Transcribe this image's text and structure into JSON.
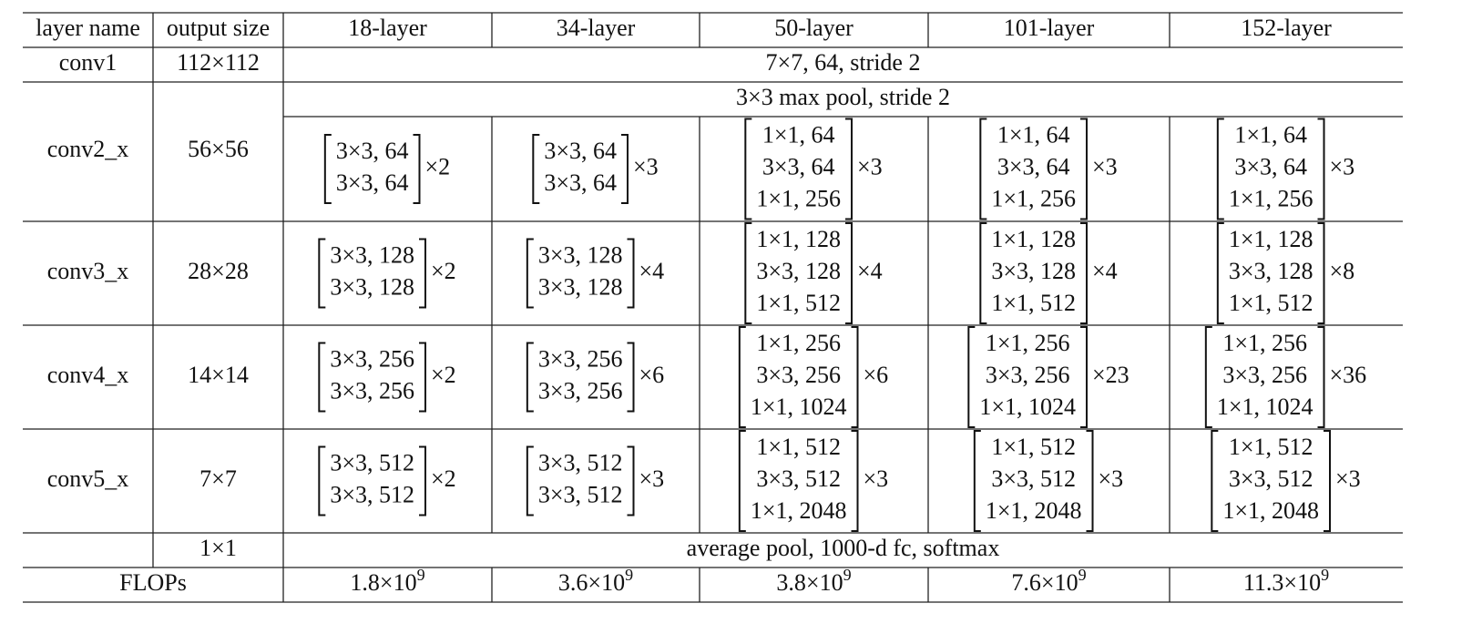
{
  "table": {
    "header": [
      "layer name",
      "output size",
      "18-layer",
      "34-layer",
      "50-layer",
      "101-layer",
      "152-layer"
    ],
    "conv1": {
      "name": "conv1",
      "output": "112×112",
      "spec": "7×7, 64, stride 2"
    },
    "pool": "3×3 max pool, stride 2",
    "stages": [
      {
        "name": "conv2_x",
        "output": "56×56",
        "blocks": [
          {
            "lines": [
              "3×3, 64",
              "3×3, 64"
            ],
            "repeat": "×2"
          },
          {
            "lines": [
              "3×3, 64",
              "3×3, 64"
            ],
            "repeat": "×3"
          },
          {
            "lines": [
              "1×1, 64",
              "3×3, 64",
              "1×1, 256"
            ],
            "repeat": "×3"
          },
          {
            "lines": [
              "1×1, 64",
              "3×3, 64",
              "1×1, 256"
            ],
            "repeat": "×3"
          },
          {
            "lines": [
              "1×1, 64",
              "3×3, 64",
              "1×1, 256"
            ],
            "repeat": "×3"
          }
        ]
      },
      {
        "name": "conv3_x",
        "output": "28×28",
        "blocks": [
          {
            "lines": [
              "3×3, 128",
              "3×3, 128"
            ],
            "repeat": "×2"
          },
          {
            "lines": [
              "3×3, 128",
              "3×3, 128"
            ],
            "repeat": "×4"
          },
          {
            "lines": [
              "1×1, 128",
              "3×3, 128",
              "1×1, 512"
            ],
            "repeat": "×4"
          },
          {
            "lines": [
              "1×1, 128",
              "3×3, 128",
              "1×1, 512"
            ],
            "repeat": "×4"
          },
          {
            "lines": [
              "1×1, 128",
              "3×3, 128",
              "1×1, 512"
            ],
            "repeat": "×8"
          }
        ]
      },
      {
        "name": "conv4_x",
        "output": "14×14",
        "blocks": [
          {
            "lines": [
              "3×3, 256",
              "3×3, 256"
            ],
            "repeat": "×2"
          },
          {
            "lines": [
              "3×3, 256",
              "3×3, 256"
            ],
            "repeat": "×6"
          },
          {
            "lines": [
              "1×1, 256",
              "3×3, 256",
              "1×1, 1024"
            ],
            "repeat": "×6"
          },
          {
            "lines": [
              "1×1, 256",
              "3×3, 256",
              "1×1, 1024"
            ],
            "repeat": "×23"
          },
          {
            "lines": [
              "1×1, 256",
              "3×3, 256",
              "1×1, 1024"
            ],
            "repeat": "×36"
          }
        ]
      },
      {
        "name": "conv5_x",
        "output": "7×7",
        "blocks": [
          {
            "lines": [
              "3×3, 512",
              "3×3, 512"
            ],
            "repeat": "×2"
          },
          {
            "lines": [
              "3×3, 512",
              "3×3, 512"
            ],
            "repeat": "×3"
          },
          {
            "lines": [
              "1×1, 512",
              "3×3, 512",
              "1×1, 2048"
            ],
            "repeat": "×3"
          },
          {
            "lines": [
              "1×1, 512",
              "3×3, 512",
              "1×1, 2048"
            ],
            "repeat": "×3"
          },
          {
            "lines": [
              "1×1, 512",
              "3×3, 512",
              "1×1, 2048"
            ],
            "repeat": "×3"
          }
        ]
      }
    ],
    "final": {
      "output": "1×1",
      "spec": "average pool, 1000-d fc, softmax"
    },
    "flops": {
      "label": "FLOPs",
      "values": [
        {
          "base": "1.8×10",
          "exp": "9"
        },
        {
          "base": "3.6×10",
          "exp": "9"
        },
        {
          "base": "3.8×10",
          "exp": "9"
        },
        {
          "base": "7.6×10",
          "exp": "9"
        },
        {
          "base": "11.3×10",
          "exp": "9"
        }
      ]
    }
  }
}
